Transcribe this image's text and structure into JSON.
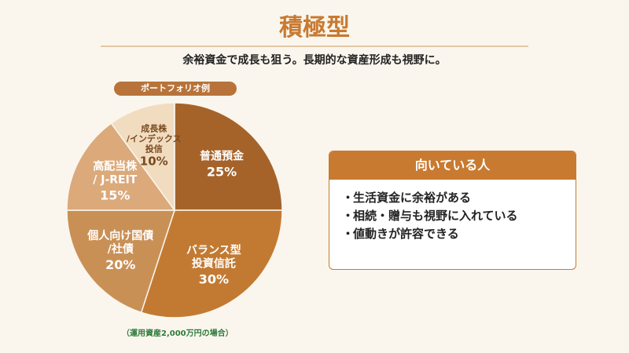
{
  "title": "積極型",
  "subtitle": "余裕資金で成長も狙う。長期的な資産形成も視野に。",
  "portfolio_label": "ポートフォリオ例",
  "footnote": "（運用資産2,000万円の場合）",
  "card": {
    "header": "向いている人",
    "items": [
      "生活資金に余裕がある",
      "相続・贈与も視野に入れている",
      "値動きが許容できる"
    ]
  },
  "colors": {
    "accent": "#c87a30",
    "background": "#faf6ee",
    "footnote": "#2f7a3a"
  },
  "chart_data": {
    "type": "pie",
    "title": "",
    "slices": [
      {
        "label_lines": [
          "普通預金"
        ],
        "value": 25,
        "value_label": "25%",
        "color": "#a5632a",
        "text_color": "#ffffff"
      },
      {
        "label_lines": [
          "バランス型",
          "投資信託"
        ],
        "value": 30,
        "value_label": "30%",
        "color": "#c27a32",
        "text_color": "#ffffff"
      },
      {
        "label_lines": [
          "個人向け国債",
          "/社債"
        ],
        "value": 20,
        "value_label": "20%",
        "color": "#c99055",
        "text_color": "#ffffff"
      },
      {
        "label_lines": [
          "高配当株",
          "/ J-REIT"
        ],
        "value": 15,
        "value_label": "15%",
        "color": "#dba97a",
        "text_color": "#ffffff"
      },
      {
        "label_lines": [
          "成長株",
          "/インデックス",
          "投信"
        ],
        "value": 10,
        "value_label": "10%",
        "color": "#f1dcc0",
        "text_color": "#7a4a20"
      }
    ]
  }
}
